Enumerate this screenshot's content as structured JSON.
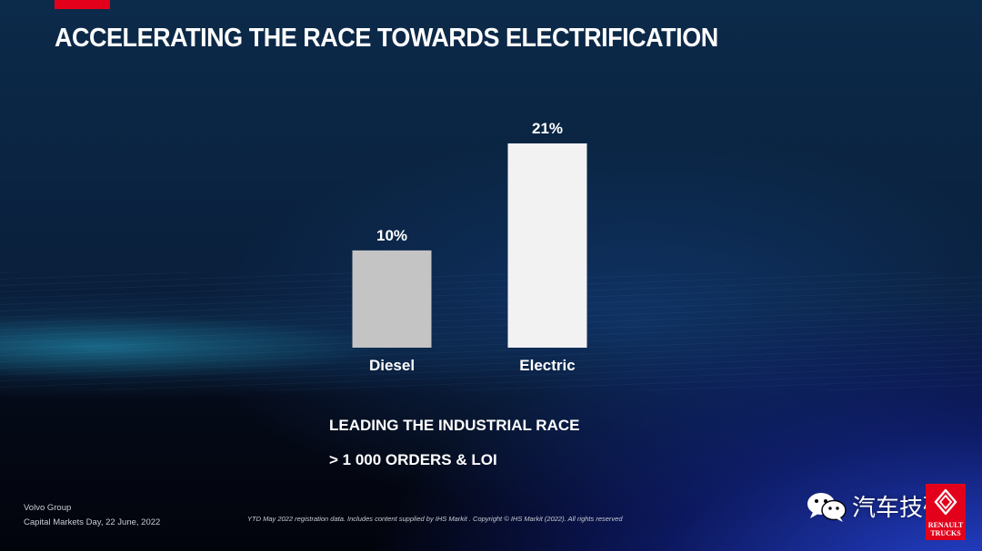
{
  "title": "ACCELERATING THE RACE TOWARDS ELECTRIFICATION",
  "colors": {
    "accent": "#e3001b",
    "diesel_bar": "#c4c4c4",
    "electric_bar": "#f2f2f2"
  },
  "chart_data": {
    "type": "bar",
    "title": "",
    "xlabel": "",
    "ylabel": "",
    "categories": [
      "Diesel",
      "Electric"
    ],
    "values": [
      10,
      21
    ],
    "value_labels": [
      "10%",
      "21%"
    ],
    "unit": "%",
    "ylim": [
      0,
      21
    ],
    "grid": false,
    "legend": "none"
  },
  "highlights": [
    "LEADING THE INDUSTRIAL RACE",
    "> 1 000 ORDERS & LOI"
  ],
  "footer": {
    "company": "Volvo Group",
    "event": "Capital Markets Day, 22 June, 2022",
    "source_note": "YTD May 2022 registration data. Includes content supplied by IHS Markit . Copyright © IHS Markit (2022). All rights reserved"
  },
  "watermark": "汽车技研",
  "icons": {
    "wechat": "wechat-icon",
    "brand_logo": "renault-trucks-logo"
  },
  "logo_text_lines": [
    "RENAULT",
    "TRUCKS"
  ]
}
